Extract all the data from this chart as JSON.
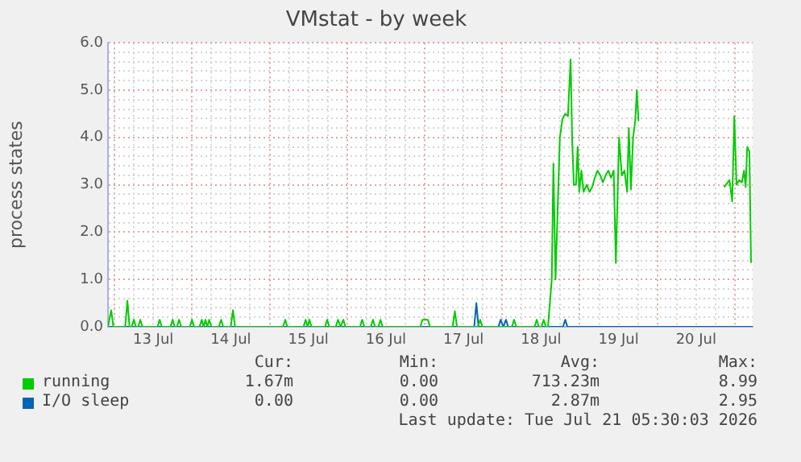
{
  "chart_data": {
    "type": "line",
    "title": "VMstat - by week",
    "ylabel": "process states",
    "xlim": [
      "2026-07-12T22:00",
      "2026-07-21T05:30"
    ],
    "xticks": [
      {
        "value": "2026-07-13T00:00",
        "label": null
      },
      {
        "value": "2026-07-13T06:00",
        "label": null
      },
      {
        "value": "2026-07-13T12:00",
        "label": "13 Jul"
      },
      {
        "value": "2026-07-13T18:00",
        "label": null
      },
      {
        "value": "2026-07-14T00:00",
        "label": null
      },
      {
        "value": "2026-07-14T06:00",
        "label": null
      },
      {
        "value": "2026-07-14T12:00",
        "label": "14 Jul"
      },
      {
        "value": "2026-07-14T18:00",
        "label": null
      },
      {
        "value": "2026-07-15T00:00",
        "label": null
      },
      {
        "value": "2026-07-15T06:00",
        "label": null
      },
      {
        "value": "2026-07-15T12:00",
        "label": "15 Jul"
      },
      {
        "value": "2026-07-15T18:00",
        "label": null
      },
      {
        "value": "2026-07-16T00:00",
        "label": null
      },
      {
        "value": "2026-07-16T06:00",
        "label": null
      },
      {
        "value": "2026-07-16T12:00",
        "label": "16 Jul"
      },
      {
        "value": "2026-07-16T18:00",
        "label": null
      },
      {
        "value": "2026-07-17T00:00",
        "label": null
      },
      {
        "value": "2026-07-17T06:00",
        "label": null
      },
      {
        "value": "2026-07-17T12:00",
        "label": "17 Jul"
      },
      {
        "value": "2026-07-17T18:00",
        "label": null
      },
      {
        "value": "2026-07-18T00:00",
        "label": null
      },
      {
        "value": "2026-07-18T06:00",
        "label": null
      },
      {
        "value": "2026-07-18T12:00",
        "label": "18 Jul"
      },
      {
        "value": "2026-07-18T18:00",
        "label": null
      },
      {
        "value": "2026-07-19T00:00",
        "label": null
      },
      {
        "value": "2026-07-19T06:00",
        "label": null
      },
      {
        "value": "2026-07-19T12:00",
        "label": "19 Jul"
      },
      {
        "value": "2026-07-19T18:00",
        "label": null
      },
      {
        "value": "2026-07-20T00:00",
        "label": null
      },
      {
        "value": "2026-07-20T06:00",
        "label": null
      },
      {
        "value": "2026-07-20T12:00",
        "label": "20 Jul"
      },
      {
        "value": "2026-07-20T18:00",
        "label": null
      },
      {
        "value": "2026-07-21T00:00",
        "label": null
      }
    ],
    "ylim": [
      0,
      6
    ],
    "yticks": [
      {
        "value": 0,
        "label": "0.0"
      },
      {
        "value": 0.2,
        "label": null
      },
      {
        "value": 0.4,
        "label": null
      },
      {
        "value": 0.6,
        "label": null
      },
      {
        "value": 0.8,
        "label": null
      },
      {
        "value": 1,
        "label": "1.0"
      },
      {
        "value": 1.2,
        "label": null
      },
      {
        "value": 1.4,
        "label": null
      },
      {
        "value": 1.6,
        "label": null
      },
      {
        "value": 1.8,
        "label": null
      },
      {
        "value": 2,
        "label": "2.0"
      },
      {
        "value": 2.2,
        "label": null
      },
      {
        "value": 2.4,
        "label": null
      },
      {
        "value": 2.6,
        "label": null
      },
      {
        "value": 2.8,
        "label": null
      },
      {
        "value": 3,
        "label": "3.0"
      },
      {
        "value": 3.2,
        "label": null
      },
      {
        "value": 3.4,
        "label": null
      },
      {
        "value": 3.6,
        "label": null
      },
      {
        "value": 3.8,
        "label": null
      },
      {
        "value": 4,
        "label": "4.0"
      },
      {
        "value": 4.2,
        "label": null
      },
      {
        "value": 4.4,
        "label": null
      },
      {
        "value": 4.6,
        "label": null
      },
      {
        "value": 4.8,
        "label": null
      },
      {
        "value": 5,
        "label": "5.0"
      },
      {
        "value": 5.2,
        "label": null
      },
      {
        "value": 5.4,
        "label": null
      },
      {
        "value": 5.6,
        "label": null
      },
      {
        "value": 5.8,
        "label": null
      },
      {
        "value": 6,
        "label": "6.0"
      }
    ],
    "grid": true,
    "legend": "bottom",
    "series": [
      {
        "name": "running",
        "color": "#00cc00",
        "x": [
          "2026-07-12T22:00",
          "2026-07-12T22:20",
          "2026-07-12T23:00",
          "2026-07-12T23:40",
          "2026-07-13T03:20",
          "2026-07-13T04:00",
          "2026-07-13T04:40",
          "2026-07-13T05:20",
          "2026-07-13T06:00",
          "2026-07-13T06:40",
          "2026-07-13T07:20",
          "2026-07-13T08:00",
          "2026-07-13T08:40",
          "2026-07-13T13:20",
          "2026-07-13T14:00",
          "2026-07-13T14:40",
          "2026-07-13T17:20",
          "2026-07-13T18:00",
          "2026-07-13T18:40",
          "2026-07-13T19:20",
          "2026-07-13T20:00",
          "2026-07-13T20:40",
          "2026-07-13T23:20",
          "2026-07-14T00:00",
          "2026-07-14T00:40",
          "2026-07-14T02:20",
          "2026-07-14T03:00",
          "2026-07-14T03:35",
          "2026-07-14T04:10",
          "2026-07-14T04:45",
          "2026-07-14T05:20",
          "2026-07-14T06:00",
          "2026-07-14T08:20",
          "2026-07-14T09:00",
          "2026-07-14T09:40",
          "2026-07-14T12:00",
          "2026-07-14T12:40",
          "2026-07-14T13:20",
          "2026-07-15T04:10",
          "2026-07-15T04:50",
          "2026-07-15T05:30",
          "2026-07-15T10:30",
          "2026-07-15T11:10",
          "2026-07-15T11:45",
          "2026-07-15T12:20",
          "2026-07-15T13:00",
          "2026-07-15T17:10",
          "2026-07-15T17:50",
          "2026-07-15T18:30",
          "2026-07-15T20:30",
          "2026-07-15T21:10",
          "2026-07-15T22:00",
          "2026-07-15T22:50",
          "2026-07-15T23:30",
          "2026-07-16T04:00",
          "2026-07-16T04:40",
          "2026-07-16T05:20",
          "2026-07-16T07:20",
          "2026-07-16T08:00",
          "2026-07-16T08:40",
          "2026-07-16T09:40",
          "2026-07-16T10:20",
          "2026-07-16T11:00",
          "2026-07-16T22:40",
          "2026-07-16T23:20",
          "2026-07-17T01:00",
          "2026-07-17T01:40",
          "2026-07-17T08:40",
          "2026-07-17T09:20",
          "2026-07-17T10:00",
          "2026-07-17T16:30",
          "2026-07-17T17:10",
          "2026-07-17T17:50",
          "2026-07-18T03:00",
          "2026-07-18T03:40",
          "2026-07-18T04:20",
          "2026-07-18T10:00",
          "2026-07-18T10:40",
          "2026-07-18T11:20",
          "2026-07-18T12:10",
          "2026-07-18T12:50",
          "2026-07-18T13:30",
          "2026-07-18T14:10",
          "2026-07-18T15:20",
          "2026-07-18T15:50",
          "2026-07-18T16:30",
          "2026-07-18T17:50",
          "2026-07-18T18:40",
          "2026-07-18T19:30",
          "2026-07-18T20:20",
          "2026-07-18T21:10",
          "2026-07-18T21:40",
          "2026-07-18T22:10",
          "2026-07-18T22:50",
          "2026-07-18T23:20",
          "2026-07-18T23:50",
          "2026-07-19T00:30",
          "2026-07-19T01:10",
          "2026-07-19T02:10",
          "2026-07-19T03:00",
          "2026-07-19T03:50",
          "2026-07-19T04:40",
          "2026-07-19T05:30",
          "2026-07-19T06:20",
          "2026-07-19T07:10",
          "2026-07-19T08:00",
          "2026-07-19T08:50",
          "2026-07-19T09:40",
          "2026-07-19T10:30",
          "2026-07-19T11:10",
          "2026-07-19T12:10",
          "2026-07-19T13:00",
          "2026-07-19T13:50",
          "2026-07-19T14:40",
          "2026-07-19T15:10",
          "2026-07-19T15:50",
          "2026-07-19T16:30",
          "2026-07-19T17:10",
          "2026-07-19T17:40",
          "2026-07-19T18:10",
          "2026-07-20T08:00",
          "2026-07-20T20:40",
          "2026-07-20T22:20",
          "2026-07-20T23:10",
          "2026-07-20T23:50",
          "2026-07-21T00:30",
          "2026-07-21T01:20",
          "2026-07-21T02:10",
          "2026-07-21T02:50",
          "2026-07-21T03:20",
          "2026-07-21T03:50",
          "2026-07-21T04:30",
          "2026-07-21T05:00"
        ],
        "values": [
          0,
          0,
          0.35,
          0,
          0,
          0.55,
          0,
          0,
          0.15,
          0,
          0,
          0.15,
          0,
          0,
          0.15,
          0,
          0,
          0.15,
          0,
          0,
          0.15,
          0,
          0,
          0.15,
          0,
          0,
          0.15,
          0,
          0.15,
          0,
          0.15,
          0,
          0,
          0.15,
          0,
          0,
          0.35,
          0,
          0,
          0.15,
          0,
          0,
          0.15,
          0,
          0.15,
          0,
          0,
          0.15,
          0,
          0,
          0.15,
          0,
          0.15,
          0,
          0,
          0.15,
          0,
          0,
          0.15,
          0,
          0,
          0.15,
          0,
          0,
          0.15,
          0.15,
          0,
          0,
          0.33,
          0,
          0,
          0.15,
          0,
          0,
          0.15,
          0,
          0,
          0.15,
          0,
          0,
          0.15,
          0,
          0,
          1,
          3.45,
          1,
          4,
          4.4,
          4.5,
          4.45,
          5.65,
          3.9,
          3,
          3,
          3.8,
          2.85,
          3.3,
          2.85,
          3,
          2.85,
          2.95,
          3.15,
          3.3,
          3.2,
          3.05,
          3.2,
          3.3,
          3.15,
          3.3,
          1.35,
          4,
          3.2,
          3.3,
          2.85,
          4.2,
          2.9,
          4,
          4.35,
          5,
          4.35,
          null,
          2.95,
          3.1,
          2.65,
          4.45,
          3,
          3.1,
          3.05,
          3.3,
          2.95,
          3.8,
          3.7,
          1.35
        ]
      },
      {
        "name": "I/O sleep",
        "color": "#0066b3",
        "x": [
          "2026-07-12T22:00",
          "2026-07-17T15:20",
          "2026-07-17T16:00",
          "2026-07-17T16:40",
          "2026-07-17T22:50",
          "2026-07-17T23:30",
          "2026-07-18T00:20",
          "2026-07-18T01:10",
          "2026-07-18T01:50",
          "2026-07-18T18:50",
          "2026-07-18T19:30",
          "2026-07-18T20:10",
          "2026-07-21T05:30"
        ],
        "values": [
          0,
          0,
          0.5,
          0,
          0,
          0.15,
          0,
          0.15,
          0,
          0,
          0.15,
          0,
          0
        ]
      }
    ],
    "annotations": [
      "Cur:",
      "Min:",
      "Avg:",
      "Max:",
      "1.67m",
      "0.00",
      "713.23m",
      "8.99",
      "0.00",
      "0.00",
      "2.87m",
      "2.95",
      "Last update: Tue Jul 21 05:30:03 2026"
    ]
  }
}
